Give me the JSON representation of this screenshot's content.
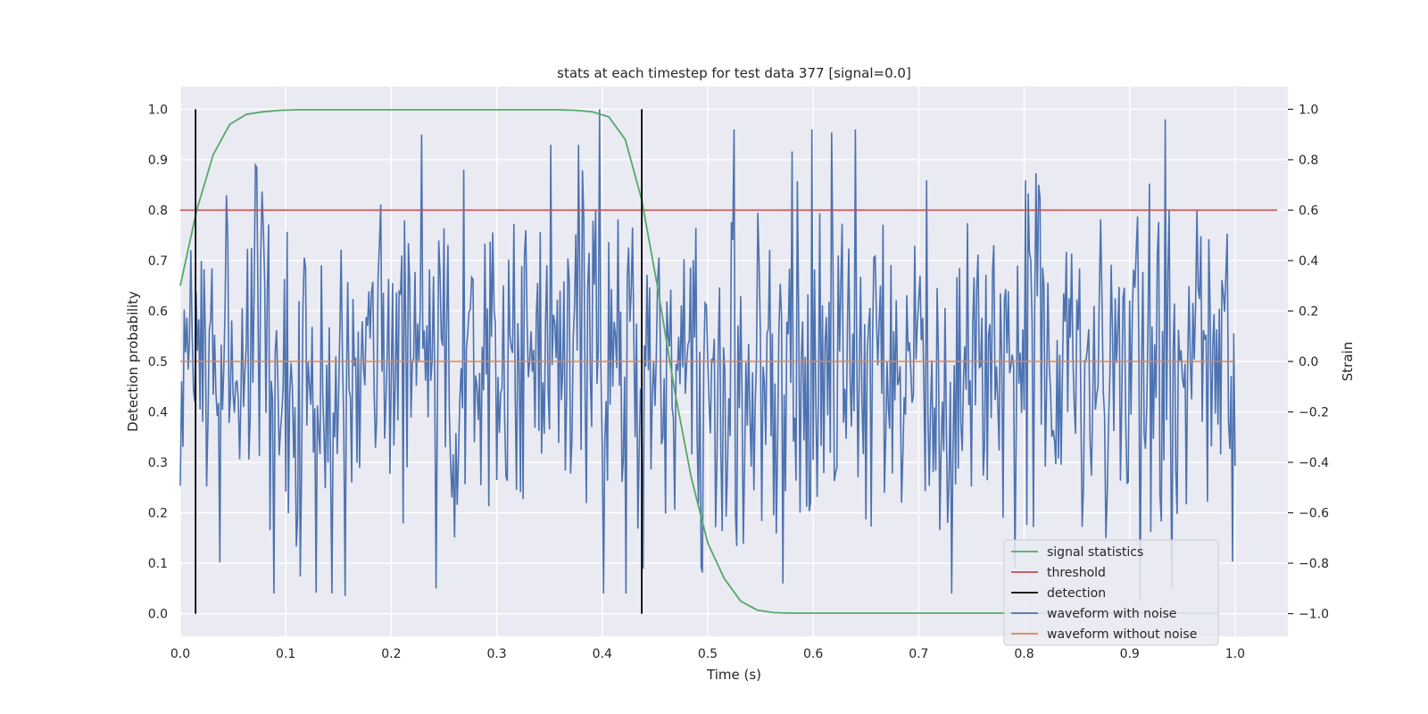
{
  "chart_data": {
    "type": "line",
    "title": "stats at each timestep for test data 377 [signal=0.0]",
    "xlabel": "Time (s)",
    "ylabel_left": "Detection probability",
    "ylabel_right": "Strain",
    "xlim": [
      0.0,
      1.05
    ],
    "ylim_left": [
      -0.045,
      1.045
    ],
    "ylim_right": [
      -1.09,
      1.09
    ],
    "x_ticks": [
      "0.0",
      "0.1",
      "0.2",
      "0.3",
      "0.4",
      "0.5",
      "0.6",
      "0.7",
      "0.8",
      "0.9",
      "1.0"
    ],
    "y_left_ticks": [
      "0.0",
      "0.1",
      "0.2",
      "0.3",
      "0.4",
      "0.5",
      "0.6",
      "0.7",
      "0.8",
      "0.9",
      "1.0"
    ],
    "y_right_ticks": [
      "−1.0",
      "−0.8",
      "−0.6",
      "−0.4",
      "−0.2",
      "0.0",
      "0.2",
      "0.4",
      "0.6",
      "0.8",
      "1.0"
    ],
    "grid": true,
    "legend_position": "lower-right",
    "colors": {
      "signal_statistics": "#55a868",
      "threshold": "#c44e52",
      "detection": "#000000",
      "waveform_with_noise": "#4c72b0",
      "waveform_without_noise": "#dd8452",
      "plot_background": "#eaeaf2",
      "grid": "#ffffff"
    },
    "series": [
      {
        "name": "signal statistics",
        "axis": "left",
        "x": [
          0.0,
          0.0156,
          0.0312,
          0.0469,
          0.0625,
          0.0781,
          0.0938,
          0.1094,
          0.125,
          0.1406,
          0.1562,
          0.1719,
          0.1875,
          0.2031,
          0.2188,
          0.2344,
          0.25,
          0.2656,
          0.2812,
          0.2969,
          0.3125,
          0.3281,
          0.3438,
          0.3594,
          0.375,
          0.3906,
          0.4062,
          0.4219,
          0.4375,
          0.4531,
          0.4688,
          0.4844,
          0.5,
          0.5156,
          0.5312,
          0.5469,
          0.5625,
          0.5781,
          0.5938,
          0.6094,
          0.625,
          0.6406,
          0.6562,
          0.6719,
          0.6875,
          0.7031,
          0.7188,
          0.7344,
          0.75,
          0.7656,
          0.7812,
          0.7969,
          0.8125,
          0.8281,
          0.8438,
          0.8594,
          0.875,
          0.8906,
          0.9062,
          0.9219,
          0.9375,
          0.9531,
          0.9688,
          0.9844
        ],
        "values": [
          0.65,
          0.8,
          0.91,
          0.97,
          0.99,
          0.995,
          0.998,
          0.999,
          0.999,
          0.999,
          0.999,
          0.999,
          0.999,
          0.999,
          0.999,
          0.999,
          0.999,
          0.999,
          0.999,
          0.999,
          0.999,
          0.999,
          0.999,
          0.999,
          0.998,
          0.995,
          0.985,
          0.94,
          0.82,
          0.64,
          0.44,
          0.27,
          0.14,
          0.07,
          0.025,
          0.007,
          0.002,
          0.001,
          0.001,
          0.001,
          0.001,
          0.001,
          0.001,
          0.001,
          0.001,
          0.001,
          0.001,
          0.001,
          0.001,
          0.001,
          0.001,
          0.001,
          0.001,
          0.001,
          0.001,
          0.001,
          0.001,
          0.001,
          0.001,
          0.001,
          0.001,
          0.001,
          0.001,
          0.001
        ]
      },
      {
        "name": "threshold",
        "axis": "left",
        "x": [
          0.0,
          1.04
        ],
        "values": [
          0.8,
          0.8
        ]
      },
      {
        "name": "detection",
        "axis": "left",
        "vertical_lines": [
          {
            "x": 0.0145,
            "y0": 0.0,
            "y1": 1.0
          },
          {
            "x": 0.4375,
            "y0": 0.0,
            "y1": 1.0
          }
        ]
      },
      {
        "name": "waveform with noise",
        "axis": "right",
        "x_range": [
          0.0,
          1.0
        ],
        "amplitude_range": [
          -1.0,
          1.0
        ],
        "peaks": [
          {
            "x": 0.398,
            "value": 1.0
          },
          {
            "x": 0.229,
            "value": 0.9
          },
          {
            "x": 0.934,
            "value": 0.96
          },
          {
            "x": 0.156,
            "value": -0.93
          },
          {
            "x": 0.243,
            "value": -0.9
          },
          {
            "x": 0.91,
            "value": -0.95
          },
          {
            "x": 0.94,
            "value": -0.9
          },
          {
            "x": 0.571,
            "value": -0.88
          }
        ]
      },
      {
        "name": "waveform without noise",
        "axis": "right",
        "x": [
          0.0,
          1.0
        ],
        "values": [
          0.0,
          0.0
        ]
      }
    ]
  }
}
